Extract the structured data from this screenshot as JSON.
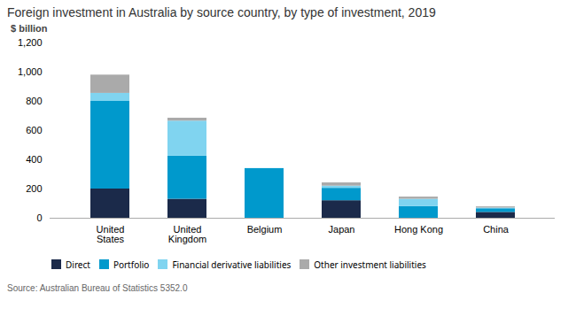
{
  "chart_data": {
    "type": "bar",
    "stacked": true,
    "title": "Foreign investment in Australia by source country, by type of investment, 2019",
    "ylabel": "$ billion",
    "annotations": [
      "Source: Australian Bureau of Statistics 5352.0"
    ],
    "categories": [
      "United\nStates",
      "United\nKingdom",
      "Belgium",
      "Japan",
      "Hong Kong",
      "China"
    ],
    "series": [
      {
        "name": "Direct",
        "color": "#1b2a4a",
        "values": [
          200,
          130,
          0,
          120,
          0,
          40
        ]
      },
      {
        "name": "Portfolio",
        "color": "#0099cc",
        "values": [
          600,
          295,
          340,
          85,
          80,
          25
        ]
      },
      {
        "name": "Financial derivative liabilities",
        "color": "#80d4f0",
        "values": [
          55,
          240,
          0,
          15,
          50,
          5
        ]
      },
      {
        "name": "Other investment liabilities",
        "color": "#aaaaaa",
        "values": [
          125,
          20,
          0,
          22,
          15,
          8
        ]
      }
    ],
    "ylim": [
      0,
      1200
    ],
    "yticks": [
      0,
      200,
      400,
      600,
      800,
      {
        "value": 1000,
        "label": "1,000"
      },
      {
        "value": 1200,
        "label": "1,200"
      }
    ],
    "grid": false,
    "legend": "bottom"
  }
}
